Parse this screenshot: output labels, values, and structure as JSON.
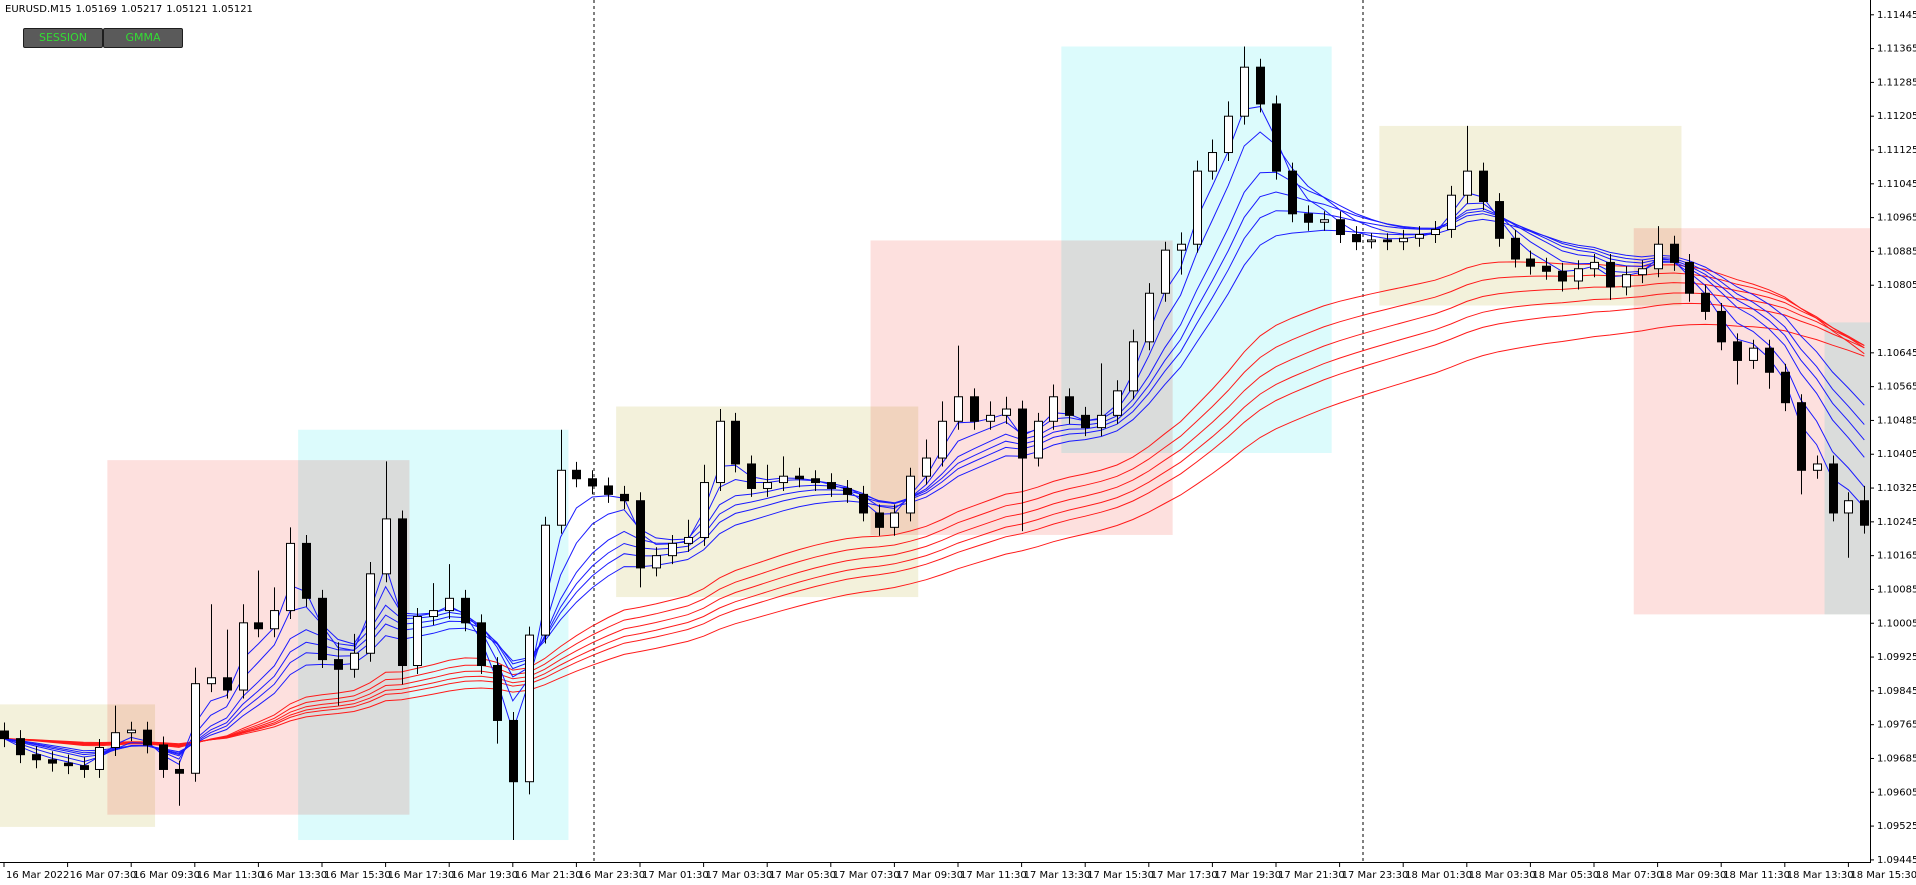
{
  "header": {
    "symbol": "EURUSD.M15",
    "quote": [
      1.05169,
      1.05217,
      1.05121,
      1.05121
    ]
  },
  "buttons": [
    "SESSION",
    "GMMA"
  ],
  "chart_data": {
    "type": "candlestick",
    "ylim": [
      1.0944,
      1.1148
    ],
    "yticks": [
      1.11445,
      1.11365,
      1.11285,
      1.11205,
      1.11125,
      1.11045,
      1.10965,
      1.10885,
      1.10805,
      1.10645,
      1.10565,
      1.10485,
      1.10405,
      1.10325,
      1.10245,
      1.10165,
      1.10085,
      1.10005,
      1.09925,
      1.09845,
      1.09765,
      1.09685,
      1.09605,
      1.09525,
      1.09445
    ],
    "categories": [
      "16 Mar 2022",
      null,
      null,
      null,
      "16 Mar 07:30",
      null,
      null,
      null,
      "16 Mar 09:30",
      null,
      null,
      null,
      "16 Mar 11:30",
      null,
      null,
      null,
      "16 Mar 13:30",
      null,
      null,
      null,
      "16 Mar 15:30",
      null,
      null,
      null,
      "16 Mar 17:30",
      null,
      null,
      null,
      "16 Mar 19:30",
      null,
      null,
      null,
      "16 Mar 21:30",
      null,
      null,
      null,
      "16 Mar 23:30",
      null,
      null,
      null,
      "17 Mar 01:30",
      null,
      null,
      null,
      "17 Mar 03:30",
      null,
      null,
      null,
      "17 Mar 05:30",
      null,
      null,
      null,
      "17 Mar 07:30",
      null,
      null,
      null,
      "17 Mar 09:30",
      null,
      null,
      null,
      "17 Mar 11:30",
      null,
      null,
      null,
      "17 Mar 13:30",
      null,
      null,
      null,
      "17 Mar 15:30",
      null,
      null,
      null,
      "17 Mar 17:30",
      null,
      null,
      null,
      "17 Mar 19:30",
      null,
      null,
      null,
      "17 Mar 21:30",
      null,
      null,
      null,
      "17 Mar 23:30",
      null,
      null,
      null,
      "18 Mar 01:30",
      null,
      null,
      null,
      "18 Mar 03:30",
      null,
      null,
      null,
      "18 Mar 05:30",
      null,
      null,
      null,
      "18 Mar 07:30",
      null,
      null,
      null,
      "18 Mar 09:30",
      null,
      null,
      null,
      "18 Mar 11:30",
      null,
      null,
      null,
      "18 Mar 13:30",
      null,
      null,
      null,
      "18 Mar 15:30",
      null
    ],
    "candles": [
      [
        1.0975,
        1.0977,
        1.09712,
        1.09732
      ],
      [
        1.09732,
        1.09752,
        1.09674,
        1.09694
      ],
      [
        1.09694,
        1.09714,
        1.09662,
        1.09682
      ],
      [
        1.09682,
        1.09702,
        1.09654,
        1.09674
      ],
      [
        1.09674,
        1.09694,
        1.09648,
        1.09668
      ],
      [
        1.09668,
        1.09688,
        1.09639,
        1.09659
      ],
      [
        1.09659,
        1.09731,
        1.09639,
        1.09711
      ],
      [
        1.09711,
        1.0981,
        1.09691,
        1.09746
      ],
      [
        1.09746,
        1.09772,
        1.09726,
        1.09752
      ],
      [
        1.09752,
        1.09772,
        1.09697,
        1.09717
      ],
      [
        1.09717,
        1.09737,
        1.09639,
        1.09659
      ],
      [
        1.09659,
        1.0968,
        1.09573,
        1.0965
      ],
      [
        1.0965,
        1.099,
        1.0963,
        1.09862
      ],
      [
        1.09862,
        1.1005,
        1.09842,
        1.09876
      ],
      [
        1.09876,
        1.0999,
        1.09827,
        1.09847
      ],
      [
        1.09847,
        1.1005,
        1.09827,
        1.10006
      ],
      [
        1.10006,
        1.1013,
        1.09972,
        1.09992
      ],
      [
        1.09992,
        1.1009,
        1.09972,
        1.10035
      ],
      [
        1.10035,
        1.10232,
        1.10015,
        1.10194
      ],
      [
        1.10194,
        1.10214,
        1.10044,
        1.10064
      ],
      [
        1.10064,
        1.10084,
        1.09899,
        1.09919
      ],
      [
        1.09919,
        1.0996,
        1.0981,
        1.09896
      ],
      [
        1.09896,
        1.0998,
        1.09876,
        1.09934
      ],
      [
        1.09934,
        1.1015,
        1.09914,
        1.10122
      ],
      [
        1.10122,
        1.10388,
        1.10102,
        1.10252
      ],
      [
        1.10252,
        1.10272,
        1.0986,
        1.09905
      ],
      [
        1.09905,
        1.10041,
        1.09885,
        1.10021
      ],
      [
        1.10021,
        1.101,
        1.10001,
        1.10035
      ],
      [
        1.10035,
        1.10145,
        1.10015,
        1.10064
      ],
      [
        1.10064,
        1.10084,
        1.09986,
        1.10006
      ],
      [
        1.10006,
        1.10026,
        1.09885,
        1.09905
      ],
      [
        1.09905,
        1.09925,
        1.0972,
        1.09775
      ],
      [
        1.09775,
        1.09795,
        1.09492,
        1.0963
      ],
      [
        1.0963,
        1.09997,
        1.096,
        1.09977
      ],
      [
        1.09977,
        1.10257,
        1.09957,
        1.10237
      ],
      [
        1.10237,
        1.10463,
        1.10217,
        1.10367
      ],
      [
        1.10367,
        1.10387,
        1.10327,
        1.10347
      ],
      [
        1.10347,
        1.10367,
        1.1031,
        1.1033
      ],
      [
        1.1033,
        1.1035,
        1.1029,
        1.1031
      ],
      [
        1.1031,
        1.1033,
        1.10275,
        1.10295
      ],
      [
        1.10295,
        1.10315,
        1.1009,
        1.10136
      ],
      [
        1.10136,
        1.10185,
        1.10116,
        1.10165
      ],
      [
        1.10165,
        1.10214,
        1.10145,
        1.10194
      ],
      [
        1.10194,
        1.1025,
        1.10174,
        1.10208
      ],
      [
        1.10208,
        1.1038,
        1.10188,
        1.10338
      ],
      [
        1.10338,
        1.10512,
        1.10318,
        1.10483
      ],
      [
        1.10483,
        1.10503,
        1.10362,
        1.10382
      ],
      [
        1.10382,
        1.10402,
        1.10304,
        1.10324
      ],
      [
        1.10324,
        1.1038,
        1.10304,
        1.10338
      ],
      [
        1.10338,
        1.104,
        1.10318,
        1.10353
      ],
      [
        1.10353,
        1.10373,
        1.10327,
        1.10347
      ],
      [
        1.10347,
        1.10367,
        1.10318,
        1.10338
      ],
      [
        1.10338,
        1.1036,
        1.10304,
        1.10324
      ],
      [
        1.10324,
        1.10344,
        1.1029,
        1.1031
      ],
      [
        1.1031,
        1.1033,
        1.10246,
        1.10266
      ],
      [
        1.10266,
        1.10286,
        1.10212,
        1.10232
      ],
      [
        1.10232,
        1.10286,
        1.10212,
        1.10266
      ],
      [
        1.10266,
        1.10373,
        1.10246,
        1.10353
      ],
      [
        1.10353,
        1.1044,
        1.10333,
        1.10396
      ],
      [
        1.10396,
        1.1053,
        1.10376,
        1.10483
      ],
      [
        1.10483,
        1.10662,
        1.10463,
        1.10541
      ],
      [
        1.10541,
        1.10561,
        1.10463,
        1.10483
      ],
      [
        1.10483,
        1.1053,
        1.10463,
        1.10497
      ],
      [
        1.10497,
        1.10541,
        1.10477,
        1.10512
      ],
      [
        1.10512,
        1.10532,
        1.10223,
        1.10396
      ],
      [
        1.10396,
        1.10503,
        1.10376,
        1.10483
      ],
      [
        1.10483,
        1.1057,
        1.10463,
        1.10541
      ],
      [
        1.10541,
        1.10561,
        1.10477,
        1.10497
      ],
      [
        1.10497,
        1.10517,
        1.10448,
        1.10468
      ],
      [
        1.10468,
        1.1062,
        1.10448,
        1.10497
      ],
      [
        1.10497,
        1.1058,
        1.10477,
        1.10555
      ],
      [
        1.10555,
        1.107,
        1.10535,
        1.10671
      ],
      [
        1.10671,
        1.1081,
        1.10651,
        1.10786
      ],
      [
        1.10786,
        1.10908,
        1.10766,
        1.10888
      ],
      [
        1.10888,
        1.1093,
        1.1083,
        1.10902
      ],
      [
        1.10902,
        1.111,
        1.10882,
        1.11075
      ],
      [
        1.11075,
        1.1115,
        1.11055,
        1.11119
      ],
      [
        1.11119,
        1.1124,
        1.11099,
        1.11205
      ],
      [
        1.11205,
        1.1137,
        1.11185,
        1.11321
      ],
      [
        1.11321,
        1.11341,
        1.11214,
        1.11234
      ],
      [
        1.11234,
        1.11254,
        1.11055,
        1.11075
      ],
      [
        1.11075,
        1.11095,
        1.10954,
        1.10974
      ],
      [
        1.10974,
        1.10994,
        1.10934,
        1.10954
      ],
      [
        1.10954,
        1.1098,
        1.10934,
        1.1096
      ],
      [
        1.1096,
        1.1098,
        1.10905,
        1.10925
      ],
      [
        1.10925,
        1.10945,
        1.10888,
        1.10908
      ],
      [
        1.10908,
        1.10928,
        1.10892,
        1.10912
      ],
      [
        1.10912,
        1.10928,
        1.10888,
        1.10908
      ],
      [
        1.10908,
        1.10936,
        1.10888,
        1.10916
      ],
      [
        1.10916,
        1.10945,
        1.10896,
        1.10925
      ],
      [
        1.10925,
        1.10957,
        1.10905,
        1.10937
      ],
      [
        1.10937,
        1.1104,
        1.10917,
        1.11018
      ],
      [
        1.11018,
        1.11182,
        1.10998,
        1.11075
      ],
      [
        1.11075,
        1.11095,
        1.10983,
        1.11003
      ],
      [
        1.11003,
        1.11023,
        1.10896,
        1.10916
      ],
      [
        1.10916,
        1.10936,
        1.10847,
        1.10867
      ],
      [
        1.10867,
        1.10887,
        1.1083,
        1.1085
      ],
      [
        1.1085,
        1.1087,
        1.10818,
        1.10838
      ],
      [
        1.10838,
        1.10858,
        1.1079,
        1.10815
      ],
      [
        1.10815,
        1.10864,
        1.10795,
        1.10844
      ],
      [
        1.10844,
        1.10879,
        1.10824,
        1.10859
      ],
      [
        1.10859,
        1.10879,
        1.1077,
        1.10801
      ],
      [
        1.10801,
        1.1085,
        1.10781,
        1.1083
      ],
      [
        1.1083,
        1.10864,
        1.1081,
        1.10844
      ],
      [
        1.10844,
        1.10945,
        1.10824,
        1.10902
      ],
      [
        1.10902,
        1.10922,
        1.10839,
        1.10859
      ],
      [
        1.10859,
        1.10879,
        1.10766,
        1.10786
      ],
      [
        1.10786,
        1.10806,
        1.10723,
        1.10743
      ],
      [
        1.10743,
        1.10763,
        1.10651,
        1.10671
      ],
      [
        1.10671,
        1.10691,
        1.1057,
        1.10627
      ],
      [
        1.10627,
        1.10676,
        1.10607,
        1.10656
      ],
      [
        1.10656,
        1.10676,
        1.1056,
        1.10599
      ],
      [
        1.10599,
        1.10619,
        1.10507,
        1.10527
      ],
      [
        1.10527,
        1.10547,
        1.1031,
        1.10367
      ],
      [
        1.10367,
        1.10402,
        1.10347,
        1.10382
      ],
      [
        1.10382,
        1.10402,
        1.10246,
        1.10266
      ],
      [
        1.10266,
        1.10315,
        1.1016,
        1.10295
      ],
      [
        1.10295,
        1.1033,
        1.10217,
        1.10237
      ]
    ],
    "bull_color": "#ffffff",
    "bear_color": "#000000",
    "fast_color": "#1a1aff",
    "slow_color": "#ff1a1a",
    "sessions": [
      {
        "from": 0,
        "to": 9,
        "top": 1.09813,
        "bottom": 1.09523,
        "color": "#f3f1db"
      },
      {
        "from": 7,
        "to": 25,
        "top": 1.10391,
        "bottom": 1.09552,
        "color": "#fde0de"
      },
      {
        "from": 19,
        "to": 35,
        "top": 1.10463,
        "bottom": 1.09492,
        "color": "#dcfbfc"
      },
      {
        "from": 39,
        "to": 57,
        "top": 1.10518,
        "bottom": 1.10067,
        "color": "#f3f1db"
      },
      {
        "from": 55,
        "to": 73,
        "top": 1.10911,
        "bottom": 1.10214,
        "color": "#fde0de"
      },
      {
        "from": 67,
        "to": 83,
        "top": 1.1137,
        "bottom": 1.10408,
        "color": "#dcfbfc"
      },
      {
        "from": 87,
        "to": 105,
        "top": 1.11182,
        "bottom": 1.10757,
        "color": "#f3f1db"
      },
      {
        "from": 103,
        "to": 117,
        "top": 1.1094,
        "bottom": 1.10026,
        "color": "#fde0de"
      },
      {
        "from": 115,
        "to": 117,
        "top": 1.10717,
        "bottom": 1.10026,
        "color": "#dcfbfc"
      }
    ]
  }
}
